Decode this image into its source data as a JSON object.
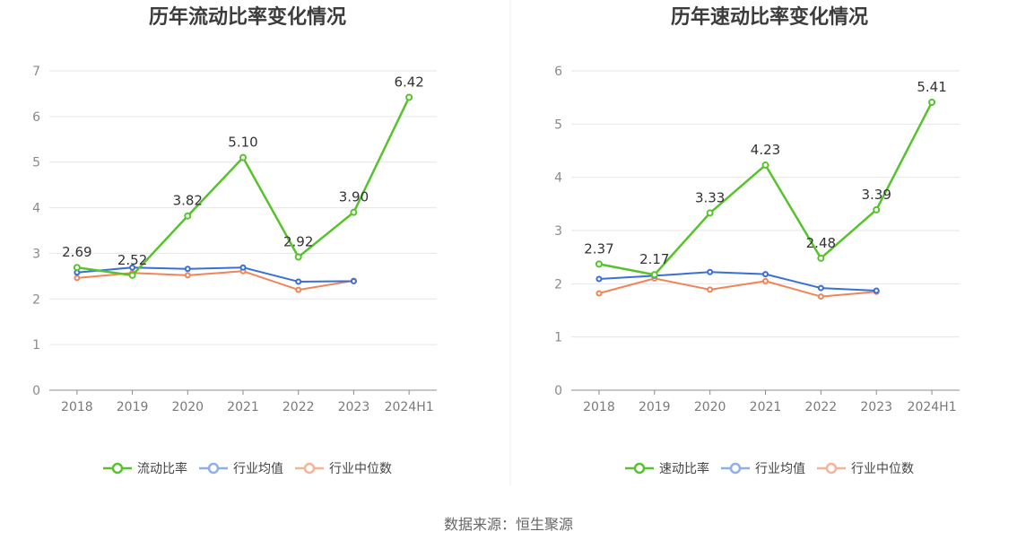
{
  "chart_data": [
    {
      "type": "line",
      "title": "历年流动比率变化情况",
      "categories": [
        "2018",
        "2019",
        "2020",
        "2021",
        "2022",
        "2023",
        "2024H1"
      ],
      "ylim": [
        0,
        7
      ],
      "yticks": [
        0,
        1,
        2,
        3,
        4,
        5,
        6,
        7
      ],
      "grid": "horizontal",
      "legend_position": "bottom",
      "series": [
        {
          "name": "流动比率",
          "values": [
            2.69,
            2.52,
            3.82,
            5.1,
            2.92,
            3.9,
            6.42
          ],
          "color": "#57c32c",
          "legend_color": "#57c32c",
          "data_labels": true
        },
        {
          "name": "行业均值",
          "values": [
            2.58,
            2.69,
            2.66,
            2.69,
            2.38,
            2.39,
            null
          ],
          "color": "#3a6fd6",
          "legend_color": "#8db0ec",
          "data_labels": false
        },
        {
          "name": "行业中位数",
          "values": [
            2.46,
            2.57,
            2.52,
            2.61,
            2.2,
            2.4,
            null
          ],
          "color": "#ef8558",
          "legend_color": "#f5b39c",
          "data_labels": false
        }
      ]
    },
    {
      "type": "line",
      "title": "历年速动比率变化情况",
      "categories": [
        "2018",
        "2019",
        "2020",
        "2021",
        "2022",
        "2023",
        "2024H1"
      ],
      "ylim": [
        0,
        6
      ],
      "yticks": [
        0,
        1,
        2,
        3,
        4,
        5,
        6
      ],
      "grid": "horizontal",
      "legend_position": "bottom",
      "series": [
        {
          "name": "速动比率",
          "values": [
            2.37,
            2.17,
            3.33,
            4.23,
            2.48,
            3.39,
            5.41
          ],
          "color": "#57c32c",
          "legend_color": "#57c32c",
          "data_labels": true
        },
        {
          "name": "行业均值",
          "values": [
            2.09,
            2.15,
            2.22,
            2.18,
            1.92,
            1.87,
            null
          ],
          "color": "#3a6fd6",
          "legend_color": "#8db0ec",
          "data_labels": false
        },
        {
          "name": "行业中位数",
          "values": [
            1.82,
            2.1,
            1.89,
            2.05,
            1.76,
            1.85,
            null
          ],
          "color": "#ef8558",
          "legend_color": "#f5b39c",
          "data_labels": false
        }
      ]
    }
  ],
  "footer": {
    "source": "数据来源：恒生聚源"
  }
}
